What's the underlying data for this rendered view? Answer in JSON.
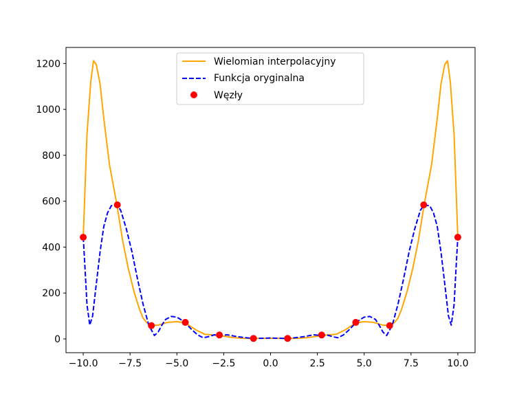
{
  "chart_data": {
    "type": "line",
    "title": "",
    "xlabel": "",
    "ylabel": "",
    "xlim": [
      -10.92,
      10.92
    ],
    "ylim": [
      -60,
      1270
    ],
    "x_ticks": [
      -10.0,
      -7.5,
      -5.0,
      -2.5,
      0.0,
      2.5,
      5.0,
      7.5,
      10.0
    ],
    "x_tick_labels": [
      "−10.0",
      "−7.5",
      "−5.0",
      "−2.5",
      "0.0",
      "2.5",
      "5.0",
      "7.5",
      "10.0"
    ],
    "y_ticks": [
      0,
      200,
      400,
      600,
      800,
      1000,
      1200
    ],
    "y_tick_labels": [
      "0",
      "200",
      "400",
      "600",
      "800",
      "1000",
      "1200"
    ],
    "grid": false,
    "legend_position": "top-center",
    "series": [
      {
        "name": "Wielomian interpolacyjny",
        "style": "solid",
        "color": "#ffa500",
        "x": [
          -10.0,
          -9.8,
          -9.6,
          -9.45,
          -9.3,
          -9.1,
          -8.9,
          -8.6,
          -8.2,
          -7.9,
          -7.6,
          -7.3,
          -7.0,
          -6.8,
          -6.6,
          -6.36,
          -6.0,
          -5.5,
          -5.0,
          -4.55,
          -4.0,
          -3.5,
          -2.73,
          -2.0,
          -1.5,
          -0.91,
          0.0,
          0.91,
          1.5,
          2.0,
          2.73,
          3.5,
          4.0,
          4.55,
          5.0,
          5.5,
          6.0,
          6.36,
          6.6,
          6.8,
          7.0,
          7.3,
          7.6,
          7.9,
          8.2,
          8.6,
          8.9,
          9.1,
          9.3,
          9.45,
          9.6,
          9.8,
          10.0
        ],
        "values": [
          443,
          890,
          1120,
          1212,
          1195,
          1110,
          960,
          760,
          584,
          430,
          310,
          210,
          130,
          90,
          70,
          58,
          60,
          72,
          75,
          70,
          40,
          20,
          15,
          6,
          3,
          2,
          3,
          2,
          3,
          6,
          15,
          20,
          40,
          70,
          75,
          72,
          60,
          58,
          70,
          90,
          130,
          210,
          310,
          430,
          584,
          760,
          960,
          1110,
          1195,
          1212,
          1120,
          890,
          443
        ]
      },
      {
        "name": "Funkcja oryginalna",
        "style": "dashed",
        "color": "#0000ff",
        "x": [
          -10.0,
          -9.9,
          -9.8,
          -9.65,
          -9.5,
          -9.3,
          -9.1,
          -8.9,
          -8.7,
          -8.5,
          -8.2,
          -8.0,
          -7.7,
          -7.4,
          -7.1,
          -6.8,
          -6.5,
          -6.2,
          -6.0,
          -5.8,
          -5.6,
          -5.3,
          -5.0,
          -4.8,
          -4.55,
          -4.2,
          -3.9,
          -3.6,
          -3.3,
          -3.0,
          -2.73,
          -2.3,
          -1.8,
          -1.3,
          -0.91,
          -0.4,
          0.0,
          0.4,
          0.91,
          1.3,
          1.8,
          2.3,
          2.73,
          3.0,
          3.3,
          3.6,
          3.9,
          4.2,
          4.55,
          4.8,
          5.0,
          5.3,
          5.6,
          5.8,
          6.0,
          6.2,
          6.5,
          6.8,
          7.1,
          7.4,
          7.7,
          8.0,
          8.2,
          8.5,
          8.7,
          8.9,
          9.1,
          9.3,
          9.5,
          9.65,
          9.8,
          9.9,
          10.0
        ],
        "values": [
          443,
          300,
          150,
          60,
          100,
          240,
          380,
          490,
          550,
          580,
          584,
          560,
          480,
          380,
          260,
          150,
          60,
          15,
          30,
          60,
          85,
          98,
          95,
          85,
          70,
          40,
          18,
          5,
          10,
          18,
          15,
          18,
          10,
          5,
          2,
          3,
          4,
          3,
          2,
          5,
          10,
          18,
          15,
          18,
          10,
          5,
          18,
          40,
          70,
          85,
          95,
          98,
          85,
          60,
          30,
          15,
          60,
          150,
          260,
          380,
          480,
          560,
          584,
          580,
          550,
          490,
          380,
          240,
          100,
          60,
          150,
          300,
          443
        ]
      },
      {
        "name": "Węzły",
        "style": "markers",
        "color": "#ff0000",
        "x": [
          -10.0,
          -8.18,
          -6.36,
          -4.55,
          -2.73,
          -0.91,
          0.91,
          2.73,
          4.55,
          6.36,
          8.18,
          10.0
        ],
        "values": [
          443,
          584,
          58,
          72,
          17,
          2,
          2,
          17,
          72,
          58,
          584,
          443
        ]
      }
    ]
  }
}
